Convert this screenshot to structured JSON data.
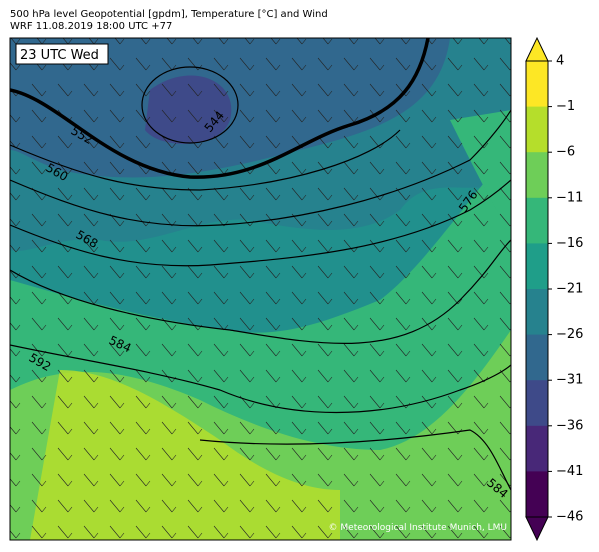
{
  "header": {
    "line1": "500 hPa level Geopotential [gpdm], Temperature [°C] and Wind",
    "line2": "WRF 11.08.2019 18:00 UTC +77"
  },
  "map": {
    "time_label": "23 UTC Wed",
    "contour_labels": [
      "552",
      "544",
      "560",
      "568",
      "576",
      "584",
      "592",
      "584"
    ],
    "copyright": "© Meteorological Institute Munich, LMU"
  },
  "colorbar": {
    "ticks": [
      "4",
      "−1",
      "−6",
      "−11",
      "−16",
      "−21",
      "−26",
      "−31",
      "−36",
      "−41",
      "−46"
    ],
    "colors": [
      "#fde725",
      "#b5de2b",
      "#6ece58",
      "#35b779",
      "#1f9e89",
      "#26828e",
      "#31688e",
      "#3e4a89",
      "#482878",
      "#440154"
    ]
  }
}
